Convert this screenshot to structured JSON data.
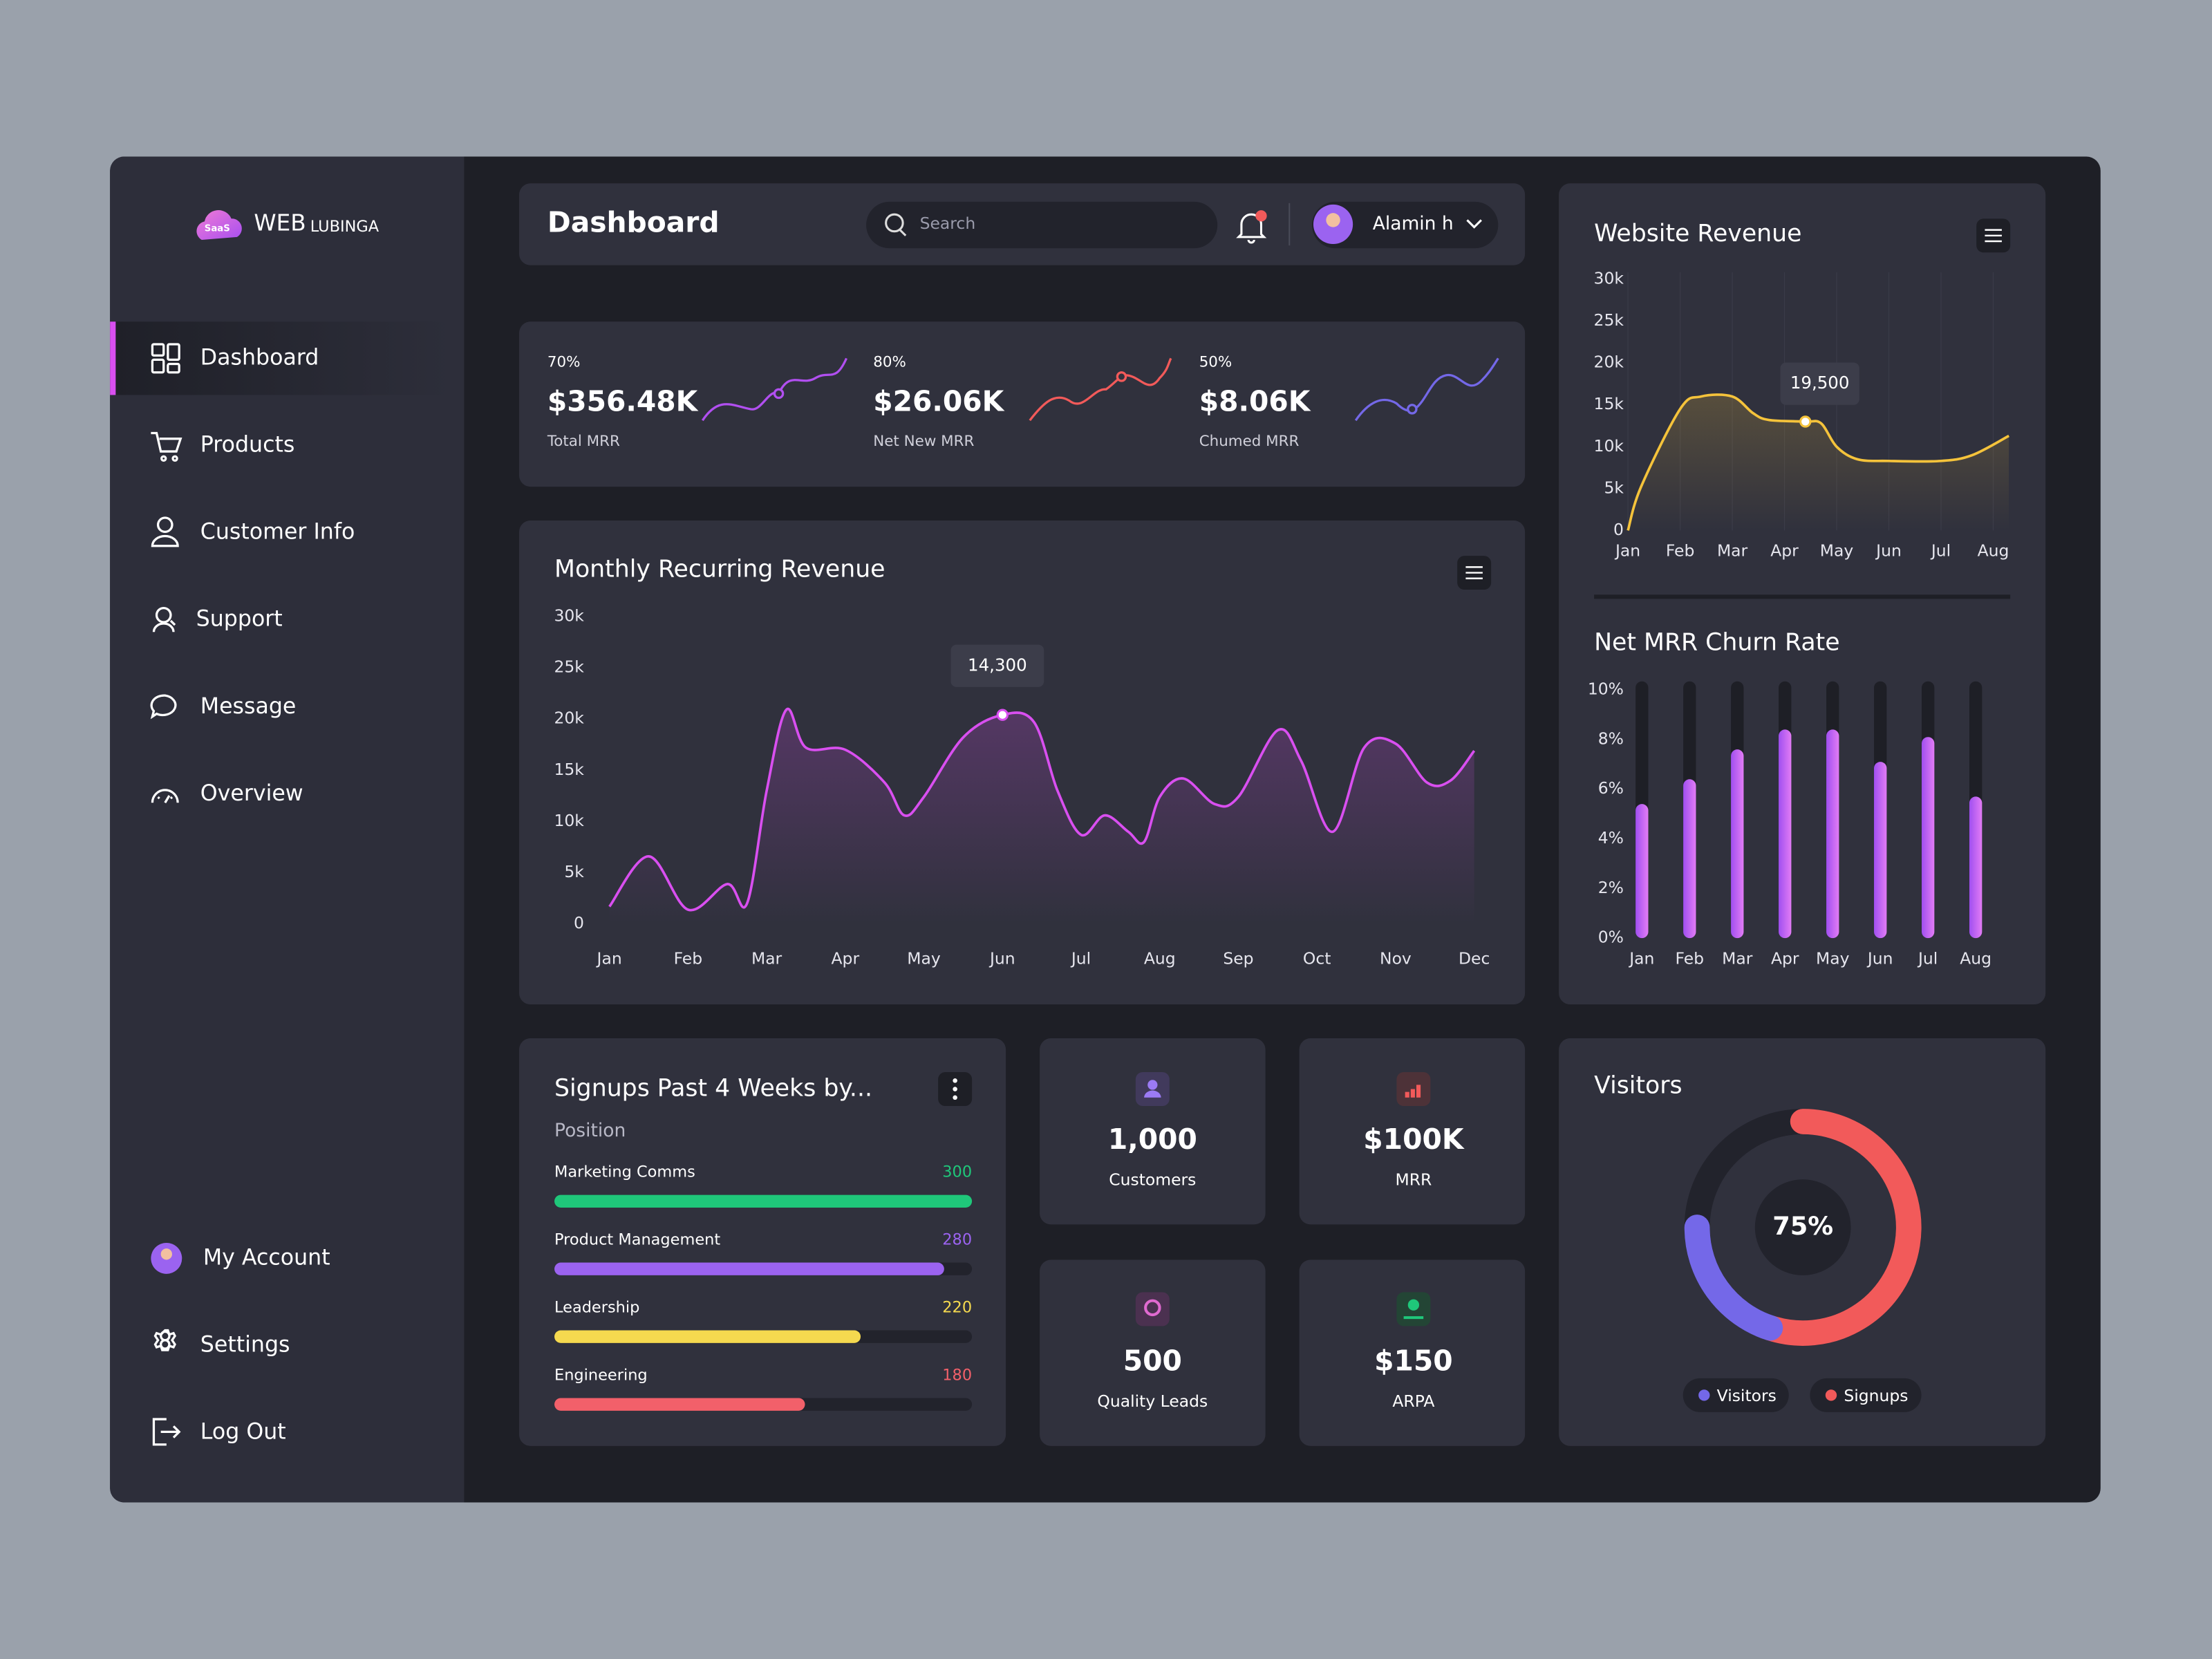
{
  "brand": {
    "badge": "SaaS",
    "name": "WEB",
    "suffix": "LUBINGA"
  },
  "nav": {
    "items": [
      "Dashboard",
      "Products",
      "Customer Info",
      "Support",
      "Message",
      "Overview"
    ],
    "bottom": [
      "My Account",
      "Settings",
      "Log Out"
    ]
  },
  "header": {
    "title": "Dashboard",
    "search_placeholder": "Search",
    "user": "Alamin h"
  },
  "kpis": [
    {
      "percent": "70%",
      "value": "$356.48K",
      "label": "Total MRR"
    },
    {
      "percent": "80%",
      "value": "$26.06K",
      "label": "Net New MRR"
    },
    {
      "percent": "50%",
      "value": "$8.06K",
      "label": "Chumed MRR"
    }
  ],
  "mrr_chart": {
    "type": "line",
    "title": "Monthly Recurring Revenue",
    "color": "#d94ff0",
    "tooltip": "14,300",
    "x": [
      0,
      0.5,
      1,
      1.5,
      1.75,
      2,
      2.25,
      2.5,
      3,
      3.5,
      3.75,
      4,
      4.5,
      5,
      5.4,
      5.7,
      6,
      6.3,
      6.6,
      6.8,
      7,
      7.3,
      7.7,
      8,
      8.5,
      8.8,
      9.2,
      9.6,
      10,
      10.4,
      10.7,
      11
    ],
    "values": [
      1700,
      6600,
      1400,
      3900,
      2000,
      13000,
      20900,
      17200,
      17000,
      13800,
      10600,
      12400,
      18200,
      20400,
      19700,
      13000,
      8700,
      10600,
      9000,
      8000,
      12400,
      14200,
      11700,
      12400,
      18900,
      15900,
      9000,
      17200,
      17600,
      13800,
      14000,
      16900
    ],
    "xlim": [
      0,
      11
    ],
    "xticks": [
      {
        "value": 0,
        "label": "Jan"
      },
      {
        "value": 1,
        "label": "Feb"
      },
      {
        "value": 2,
        "label": "Mar"
      },
      {
        "value": 3,
        "label": "Apr"
      },
      {
        "value": 4,
        "label": "May"
      },
      {
        "value": 5,
        "label": "Jun"
      },
      {
        "value": 6,
        "label": "Jul"
      },
      {
        "value": 7,
        "label": "Aug"
      },
      {
        "value": 8,
        "label": "Sep"
      },
      {
        "value": 9,
        "label": "Oct"
      },
      {
        "value": 10,
        "label": "Nov"
      },
      {
        "value": 11,
        "label": "Dec"
      }
    ],
    "ylim": [
      0,
      30000
    ],
    "yticks": [
      0,
      {
        "value": 5000,
        "label": "5k"
      },
      {
        "value": 10000,
        "label": "10k"
      },
      {
        "value": 15000,
        "label": "15k"
      },
      {
        "value": 20000,
        "label": "20k"
      },
      {
        "value": 25000,
        "label": "25k"
      },
      {
        "value": 30000,
        "label": "30k"
      }
    ]
  },
  "revenue_chart": {
    "type": "line",
    "title": "Website Revenue",
    "color": "#f5c33b",
    "tooltip": "19,500",
    "x": [
      0,
      0.25,
      1,
      1.4,
      2,
      2.4,
      2.7,
      3.4,
      3.7,
      4,
      4.4,
      5,
      6,
      6.6,
      7.3
    ],
    "values": [
      0,
      5200,
      14500,
      16000,
      16000,
      14000,
      13200,
      13000,
      12800,
      10000,
      8500,
      8300,
      8300,
      9000,
      11300
    ],
    "xlim": [
      0,
      7.3
    ],
    "xticks": [
      {
        "value": 0,
        "label": "Jan"
      },
      {
        "value": 1,
        "label": "Feb"
      },
      {
        "value": 2,
        "label": "Mar"
      },
      {
        "value": 3,
        "label": "Apr"
      },
      {
        "value": 4,
        "label": "May"
      },
      {
        "value": 5,
        "label": "Jun"
      },
      {
        "value": 6,
        "label": "Jul"
      },
      {
        "value": 7,
        "label": "Aug"
      }
    ],
    "ylim": [
      0,
      30000
    ],
    "yticks": [
      0,
      {
        "value": 5000,
        "label": "5k"
      },
      {
        "value": 10000,
        "label": "10k"
      },
      {
        "value": 15000,
        "label": "15k"
      },
      {
        "value": 20000,
        "label": "20k"
      },
      {
        "value": 25000,
        "label": "25k"
      },
      {
        "value": 30000,
        "label": "30k"
      }
    ]
  },
  "churn_chart": {
    "type": "bar",
    "title": "Net MRR Churn Rate",
    "color": "#c85ff0",
    "categories": [
      "Jan",
      "Feb",
      "Mar",
      "Apr",
      "May",
      "Jun",
      "Jul",
      "Aug"
    ],
    "values": [
      5.4,
      6.4,
      7.6,
      8.4,
      8.4,
      7.1,
      8.1,
      5.7
    ],
    "ylim": [
      0,
      10
    ],
    "yticks": [
      {
        "value": 0,
        "label": "0%"
      },
      {
        "value": 2,
        "label": "2%"
      },
      {
        "value": 4,
        "label": "4%"
      },
      {
        "value": 6,
        "label": "6%"
      },
      {
        "value": 8,
        "label": "8%"
      },
      {
        "value": 10,
        "label": "10%"
      }
    ]
  },
  "signups": {
    "title": "Signups Past 4 Weeks by...",
    "subtitle": "Position",
    "xlim": [
      0,
      300
    ],
    "rows": [
      {
        "name": "Marketing Comms",
        "value": 300,
        "color": "#1fc77a"
      },
      {
        "name": "Product Management",
        "value": 280,
        "color": "#9b63f0"
      },
      {
        "name": "Leadership",
        "value": 220,
        "color": "#f5d94f"
      },
      {
        "name": "Engineering",
        "value": 180,
        "color": "#f2606a"
      }
    ]
  },
  "stats": [
    {
      "value": "1,000",
      "label": "Customers"
    },
    {
      "value": "$100K",
      "label": "MRR"
    },
    {
      "value": "500",
      "label": "Quality Leads"
    },
    {
      "value": "$150",
      "label": "ARPA"
    }
  ],
  "visitors": {
    "type": "donut",
    "title": "Visitors",
    "value": 75,
    "value_label": "75%",
    "legend": [
      {
        "name": "Visitors",
        "color": "#7468e8"
      },
      {
        "name": "Signups",
        "color": "#f25a5a"
      }
    ]
  }
}
